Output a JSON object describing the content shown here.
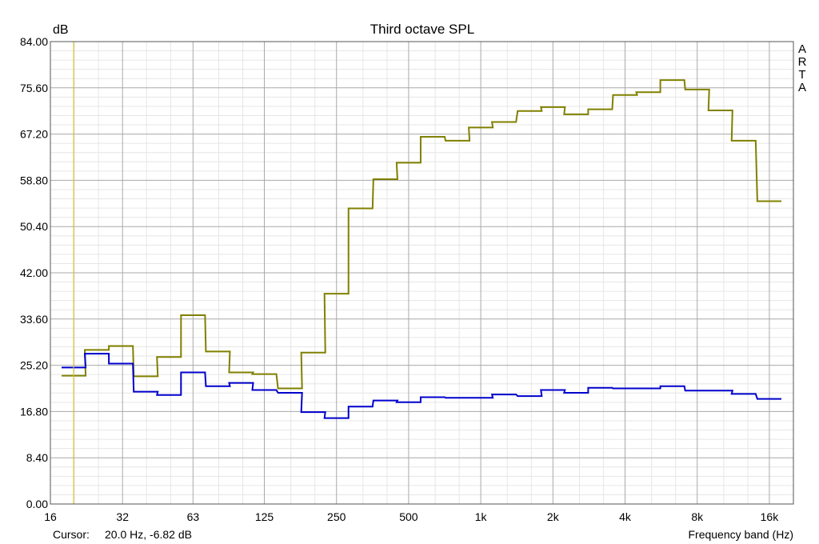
{
  "chart_data": {
    "type": "line",
    "title": "Third octave SPL",
    "ylabel": "dB",
    "xlabel": "Frequency band (Hz)",
    "brand": "ARTA",
    "x_scale": "log",
    "grid": true,
    "ylim": [
      0,
      84
    ],
    "yticks": [
      "0.00",
      "8.40",
      "16.80",
      "25.20",
      "33.60",
      "42.00",
      "50.40",
      "58.80",
      "67.20",
      "75.60",
      "84.00"
    ],
    "xticks": [
      {
        "label": "16",
        "value": 16
      },
      {
        "label": "32",
        "value": 32
      },
      {
        "label": "63",
        "value": 63
      },
      {
        "label": "125",
        "value": 125
      },
      {
        "label": "250",
        "value": 250
      },
      {
        "label": "500",
        "value": 500
      },
      {
        "label": "1k",
        "value": 1000
      },
      {
        "label": "2k",
        "value": 2000
      },
      {
        "label": "4k",
        "value": 4000
      },
      {
        "label": "8k",
        "value": 8000
      },
      {
        "label": "16k",
        "value": 16000
      }
    ],
    "x": [
      20,
      25,
      31.5,
      40,
      50,
      63,
      80,
      100,
      125,
      160,
      200,
      250,
      315,
      400,
      500,
      630,
      800,
      1000,
      1250,
      1600,
      2000,
      2500,
      3150,
      4000,
      5000,
      6300,
      8000,
      10000,
      12500,
      16000
    ],
    "series": [
      {
        "color": "#808000",
        "values": [
          23.3,
          28.0,
          28.7,
          23.2,
          26.7,
          34.3,
          27.7,
          23.9,
          23.6,
          21.0,
          27.5,
          38.2,
          53.7,
          59.0,
          62.0,
          66.7,
          66.0,
          68.4,
          69.4,
          71.4,
          72.1,
          70.8,
          71.7,
          74.3,
          74.8,
          77.0,
          75.3,
          71.5,
          66.0,
          55.0
        ]
      },
      {
        "color": "#0000cc",
        "values": [
          24.8,
          27.3,
          25.5,
          20.4,
          19.8,
          23.9,
          21.4,
          22.0,
          20.7,
          20.2,
          16.7,
          15.6,
          17.7,
          18.8,
          18.5,
          19.4,
          19.3,
          19.3,
          19.9,
          19.6,
          20.7,
          20.2,
          21.1,
          21.0,
          21.0,
          21.4,
          20.6,
          20.6,
          20.0,
          19.1
        ]
      }
    ],
    "cursor": {
      "label": "Cursor:",
      "readout": "20.0 Hz, -6.82 dB",
      "frequency": 20.0,
      "color": "#d4c43a"
    }
  }
}
